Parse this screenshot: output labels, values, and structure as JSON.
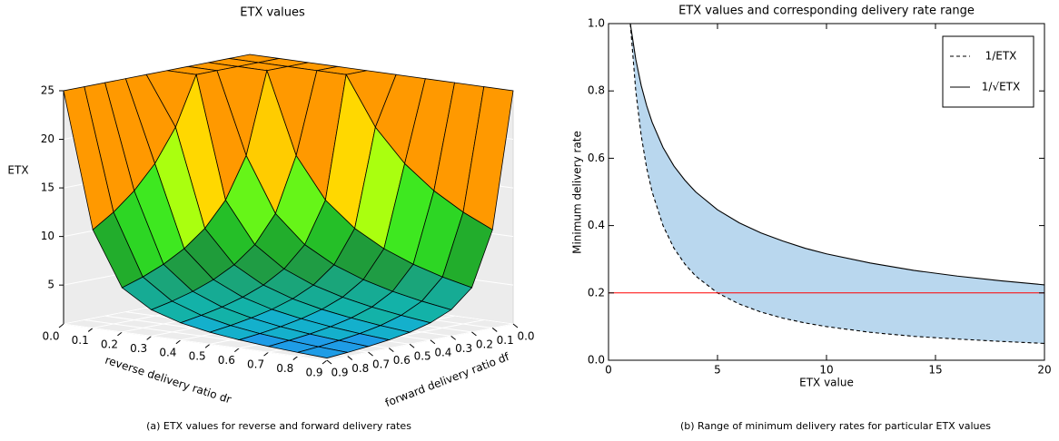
{
  "chart_data": [
    {
      "type": "surface",
      "title": "ETX values",
      "caption": "(a) ETX values for reverse and forward delivery rates",
      "x_label": "reverse delivery ratio dr",
      "y_label": "forward delivery ratio df",
      "z_label": "ETX",
      "x": [
        0,
        0.1,
        0.2,
        0.3,
        0.4,
        0.5,
        0.6,
        0.7,
        0.8,
        0.9
      ],
      "y": [
        0,
        0.1,
        0.2,
        0.3,
        0.4,
        0.5,
        0.6,
        0.7,
        0.8,
        0.9
      ],
      "z": [
        [
          25,
          25,
          25,
          25,
          25,
          25,
          25,
          25,
          25,
          25
        ],
        [
          25,
          25,
          25,
          25,
          25,
          20,
          16.67,
          14.29,
          12.5,
          11.11
        ],
        [
          25,
          25,
          25,
          16.67,
          12.5,
          10,
          8.33,
          7.14,
          6.25,
          5.56
        ],
        [
          25,
          25,
          16.67,
          11.11,
          8.33,
          6.67,
          5.56,
          4.76,
          4.17,
          3.7
        ],
        [
          25,
          25,
          12.5,
          8.33,
          6.25,
          5,
          4.17,
          3.57,
          3.13,
          2.78
        ],
        [
          25,
          20,
          10,
          6.67,
          5,
          4,
          3.33,
          2.86,
          2.5,
          2.22
        ],
        [
          25,
          16.67,
          8.33,
          5.56,
          4.17,
          3.33,
          2.78,
          2.38,
          2.08,
          1.85
        ],
        [
          25,
          14.29,
          7.14,
          4.76,
          3.57,
          2.86,
          2.38,
          2.04,
          1.79,
          1.59
        ],
        [
          25,
          12.5,
          6.25,
          4.17,
          3.13,
          2.5,
          2.08,
          1.79,
          1.56,
          1.39
        ],
        [
          25,
          11.11,
          5.56,
          3.7,
          2.78,
          2.22,
          1.85,
          1.59,
          1.39,
          1.23
        ]
      ],
      "xlim": [
        0,
        0.9
      ],
      "ylim": [
        0,
        0.9
      ],
      "zlim": [
        1,
        25
      ],
      "xticks": [
        {
          "value": 0,
          "label": "0.0"
        },
        0.1,
        0.2,
        0.3,
        0.4,
        0.5,
        0.6,
        0.7,
        0.8,
        0.9
      ],
      "yticks": [
        {
          "value": 0,
          "label": "0.0"
        },
        0.1,
        0.2,
        0.3,
        0.4,
        0.5,
        0.6,
        0.7,
        0.8,
        0.9
      ],
      "zticks": [
        5,
        10,
        15,
        20,
        25
      ],
      "colormap": [
        "#1e9ce6",
        "#14b0cc",
        "#13b2a8",
        "#16ab94",
        "#1aa57a",
        "#1f9c44",
        "#1f9c3a",
        "#22ad2c",
        "#25bf28",
        "#2dd624",
        "#3ee820",
        "#66f518",
        "#aaff0f",
        "#ccff00",
        "#e6f000",
        "#ffd800",
        "#ffcc00",
        "#ff9900",
        "#ff9900",
        "#ff9900",
        "#ff9900",
        "#ff9900",
        "#ff9900",
        "#ff9900"
      ],
      "edge_color": "#000000",
      "pane_color": "#ececec"
    },
    {
      "type": "line",
      "title": "ETX values and corresponding delivery rate range",
      "caption": "(b) Range of minimum delivery rates for particular ETX values",
      "x_label": "ETX value",
      "y_label": "Minimum delivery rate",
      "x": [
        1,
        1.25,
        1.5,
        1.75,
        2,
        2.5,
        3,
        3.5,
        4,
        5,
        6,
        7,
        8,
        9,
        10,
        12,
        14,
        16,
        18,
        20
      ],
      "series": [
        {
          "name": "1/ETX",
          "color": "#000000",
          "linestyle": "dashed",
          "values": [
            1,
            0.8,
            0.667,
            0.571,
            0.5,
            0.4,
            0.333,
            0.286,
            0.25,
            0.2,
            0.167,
            0.143,
            0.125,
            0.111,
            0.1,
            0.083,
            0.071,
            0.063,
            0.056,
            0.05
          ]
        },
        {
          "name": "1/√ETX",
          "color": "#000000",
          "linestyle": "solid",
          "values": [
            1,
            0.894,
            0.816,
            0.756,
            0.707,
            0.632,
            0.577,
            0.535,
            0.5,
            0.447,
            0.408,
            0.378,
            0.354,
            0.333,
            0.316,
            0.289,
            0.267,
            0.25,
            0.236,
            0.224
          ]
        }
      ],
      "fill_between": {
        "color": "#b9d7ee"
      },
      "hline": {
        "value": 0.2,
        "color": "#ff0000"
      },
      "xlim": [
        0,
        20
      ],
      "ylim": [
        0,
        1
      ],
      "xticks": [
        0,
        5,
        10,
        15,
        20
      ],
      "yticks": [
        {
          "value": 0,
          "label": "0.0"
        },
        0.2,
        0.4,
        0.6,
        0.8,
        {
          "value": 1,
          "label": "1.0"
        }
      ],
      "legend": "upper right"
    }
  ]
}
